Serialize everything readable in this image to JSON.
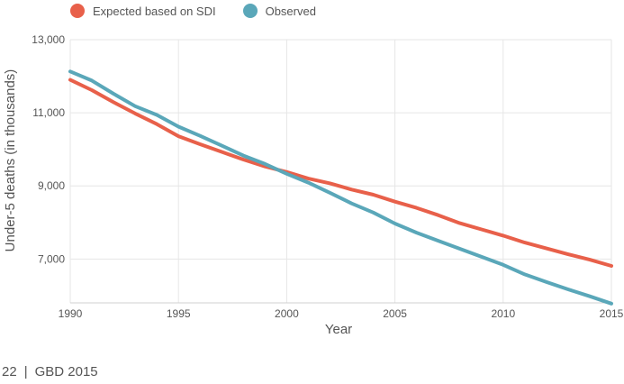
{
  "chart_data": {
    "type": "line",
    "title": "",
    "xlabel": "Year",
    "ylabel": "Under-5 deaths (in thousands)",
    "xlim": [
      1990,
      2015
    ],
    "ylim": [
      5800,
      13000
    ],
    "x_ticks": [
      1990,
      1995,
      2000,
      2005,
      2010,
      2015
    ],
    "y_ticks": [
      7000,
      9000,
      11000,
      13000
    ],
    "y_tick_labels": [
      "7,000",
      "9,000",
      "11,000",
      "13,000"
    ],
    "grid": true,
    "legend_position": "top-left",
    "x": [
      1990,
      1991,
      1992,
      1993,
      1994,
      1995,
      1996,
      1997,
      1998,
      1999,
      2000,
      2001,
      2002,
      2003,
      2004,
      2005,
      2006,
      2007,
      2008,
      2009,
      2010,
      2011,
      2012,
      2013,
      2014,
      2015
    ],
    "series": [
      {
        "name": "Expected based on SDI",
        "color": "#e8604a",
        "values": [
          11900,
          11620,
          11290,
          10980,
          10690,
          10360,
          10140,
          9930,
          9720,
          9530,
          9380,
          9200,
          9070,
          8900,
          8760,
          8570,
          8400,
          8200,
          7980,
          7810,
          7640,
          7450,
          7290,
          7130,
          6980,
          6810
        ]
      },
      {
        "name": "Observed",
        "color": "#5aa7b9",
        "values": [
          12130,
          11880,
          11520,
          11180,
          10940,
          10620,
          10370,
          10100,
          9830,
          9600,
          9330,
          9090,
          8810,
          8520,
          8270,
          7970,
          7720,
          7500,
          7280,
          7060,
          6840,
          6580,
          6370,
          6170,
          5980,
          5780
        ]
      }
    ]
  },
  "footer": {
    "page_number": "22",
    "separator": "|",
    "publication": "GBD 2015"
  }
}
